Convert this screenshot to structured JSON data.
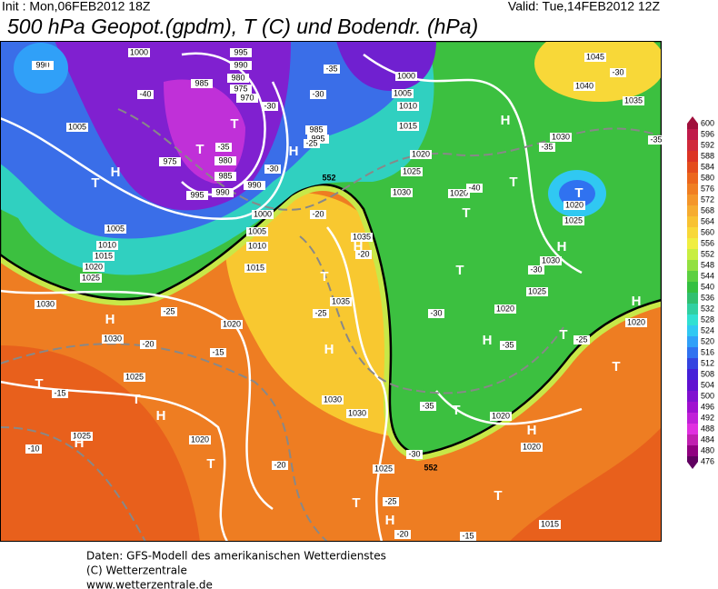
{
  "header": {
    "init": "Init : Mon,06FEB2012 18Z",
    "valid": "Valid: Tue,14FEB2012 12Z",
    "title": "500 hPa Geopot.(gpdm), T (C) und Bodendr. (hPa)"
  },
  "footer": [
    "Daten: GFS-Modell des amerikanischen Wetterdienstes",
    "(C) Wetterzentrale",
    "www.wetterzentrale.de"
  ],
  "map": {
    "isobar_labels": [
      "990",
      "1000",
      "995",
      "990",
      "985",
      "980",
      "975",
      "970",
      "1005",
      "1000",
      "1005",
      "1010",
      "1015",
      "1020",
      "1025",
      "1030",
      "1020",
      "985",
      "995",
      "975",
      "980",
      "985",
      "990",
      "995",
      "990",
      "1000",
      "1005",
      "1010",
      "1015",
      "1005",
      "1010",
      "1015",
      "1020",
      "1025",
      "1030",
      "1030",
      "1020",
      "1035",
      "1035",
      "1030",
      "1030",
      "1025",
      "1025",
      "1020",
      "1025",
      "1045",
      "1040",
      "1035",
      "1030",
      "1020",
      "1025",
      "1030",
      "1025",
      "1020",
      "1020",
      "1020",
      "1020",
      "1015"
    ],
    "temperature_labels": [
      "-35",
      "-40",
      "-30",
      "-35",
      "-30",
      "-25",
      "-30",
      "-20",
      "-20",
      "-40",
      "-35",
      "-30",
      "-35",
      "-30",
      "-25",
      "-20",
      "-15",
      "-15",
      "-10",
      "-20",
      "-25",
      "-30",
      "-35",
      "-35",
      "-30",
      "-25",
      "-25",
      "-20",
      "-15"
    ],
    "geopotential_labels": [
      "552",
      "552"
    ],
    "pressure_centers": [
      "T",
      "T",
      "T",
      "T",
      "H",
      "H",
      "H",
      "T",
      "T",
      "T",
      "H",
      "T",
      "H",
      "T",
      "H",
      "H",
      "T",
      "T",
      "H",
      "H",
      "T",
      "T",
      "H",
      "T",
      "H",
      "T",
      "H",
      "T",
      "H",
      "T"
    ]
  },
  "colorbar": {
    "ticks": [
      600,
      596,
      592,
      588,
      584,
      580,
      576,
      572,
      568,
      564,
      560,
      556,
      552,
      548,
      544,
      540,
      536,
      532,
      528,
      524,
      520,
      516,
      512,
      508,
      504,
      500,
      496,
      492,
      488,
      484,
      480,
      476
    ],
    "colors": [
      "#a0103c",
      "#c01a4a",
      "#d02a3a",
      "#dc3424",
      "#e44c1c",
      "#ec661c",
      "#f07e22",
      "#f4962a",
      "#f6ac30",
      "#f8c232",
      "#f8d838",
      "#f0ee40",
      "#c8ee40",
      "#92e040",
      "#5cd040",
      "#34c040",
      "#30c070",
      "#30d0a2",
      "#30e0d2",
      "#30c8f2",
      "#30a0f8",
      "#3072f0",
      "#3444e0",
      "#4420d8",
      "#6010d0",
      "#8010d0",
      "#a010d0",
      "#c020d8",
      "#e030e0",
      "#c020b0",
      "#900080",
      "#600060"
    ]
  }
}
